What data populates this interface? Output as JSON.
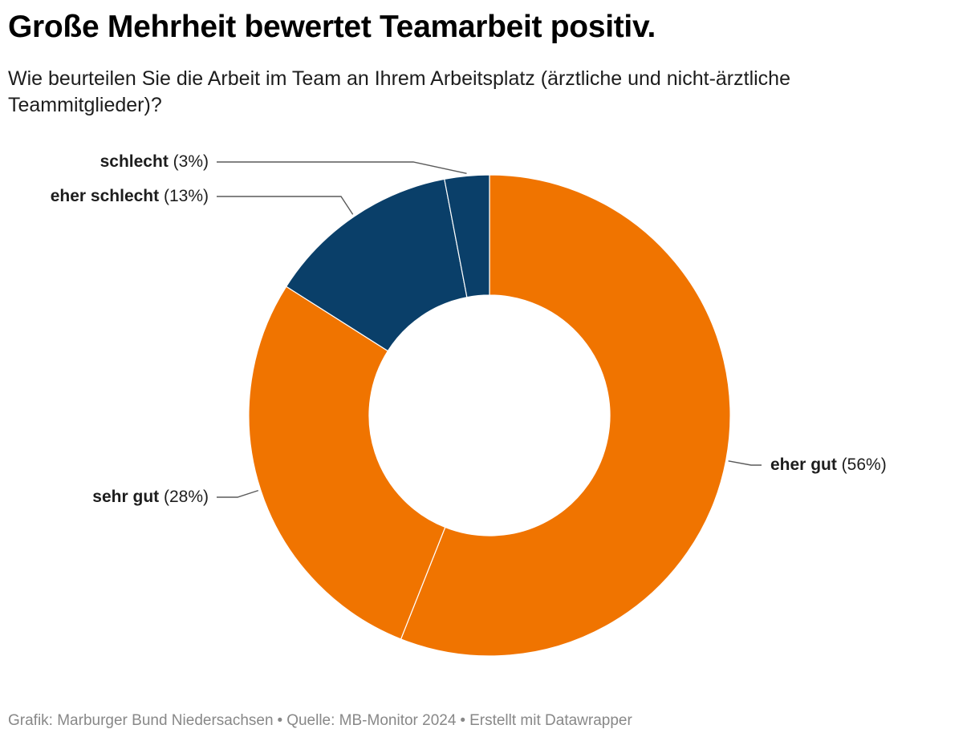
{
  "title": "Große Mehrheit bewertet Teamarbeit positiv.",
  "subtitle": "Wie beurteilen Sie die Arbeit im Team an Ihrem Arbeitsplatz (ärztliche und nicht-ärztliche Teammitglieder)?",
  "chart_data": {
    "type": "pie",
    "donut": true,
    "start": "top, clockwise",
    "slices": [
      {
        "category": "eher gut",
        "value": 56,
        "label": "(56%)",
        "color": "#f07400"
      },
      {
        "category": "sehr gut",
        "value": 28,
        "label": "(28%)",
        "color": "#f07400"
      },
      {
        "category": "eher schlecht",
        "value": 13,
        "label": "(13%)",
        "color": "#0a3f69"
      },
      {
        "category": "schlecht",
        "value": 3,
        "label": "(3%)",
        "color": "#0a3f69"
      }
    ]
  },
  "footer": {
    "grafik": "Grafik: Marburger Bund Niedersachsen",
    "bullet": "•",
    "quelle": "Quelle: MB-Monitor 2024",
    "erstellt": "Erstellt mit Datawrapper"
  }
}
